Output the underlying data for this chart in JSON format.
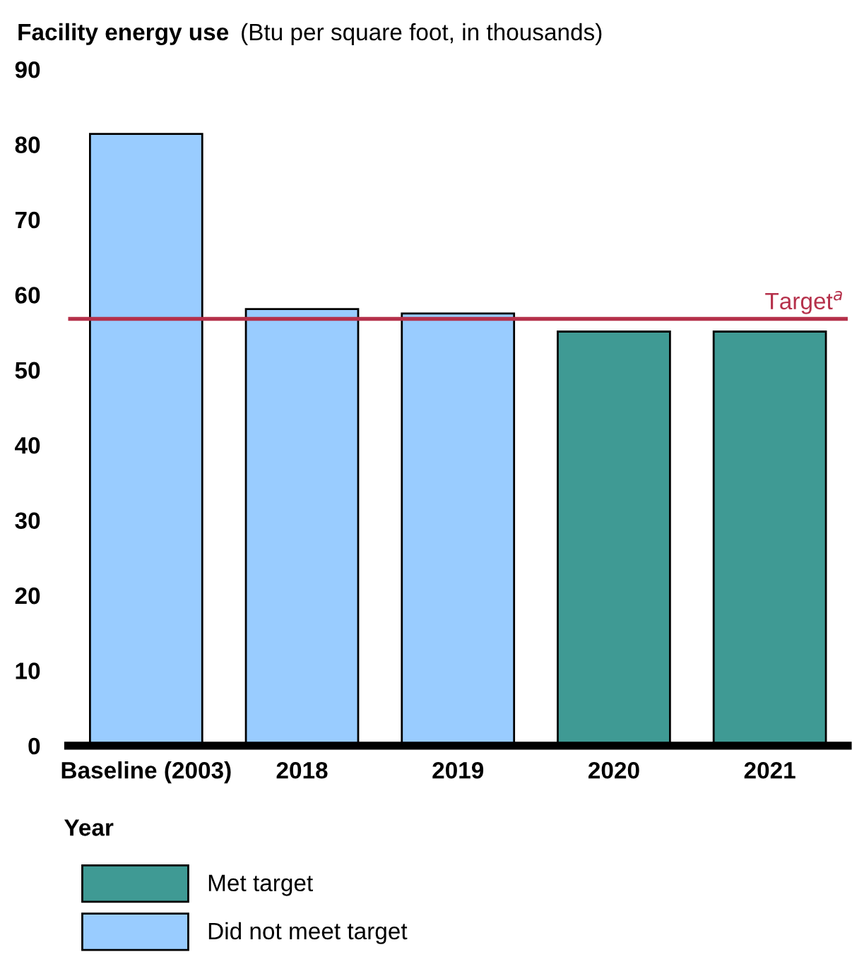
{
  "chart_data": {
    "type": "bar",
    "title": "Facility energy use",
    "subtitle": "(Btu per square foot, in thousands)",
    "xlabel": "Year",
    "categories": [
      "Baseline (2003)",
      "2018",
      "2019",
      "2020",
      "2021"
    ],
    "series": [
      {
        "name": "Met target",
        "color": "#3f9a94",
        "values": [
          null,
          null,
          null,
          55.1,
          55.1
        ]
      },
      {
        "name": "Did not meet target",
        "color": "#99ccff",
        "values": [
          81.4,
          58.1,
          57.5,
          null,
          null
        ]
      }
    ],
    "ylim": [
      0,
      90
    ],
    "yticks": [
      0,
      10,
      20,
      30,
      40,
      50,
      60,
      70,
      80,
      90
    ],
    "ref_lines": [
      {
        "axis": "y",
        "value": 56.8,
        "label": "Target$^{a}$",
        "color": "#b5304a"
      }
    ],
    "grid": false,
    "legend": "bottom"
  }
}
